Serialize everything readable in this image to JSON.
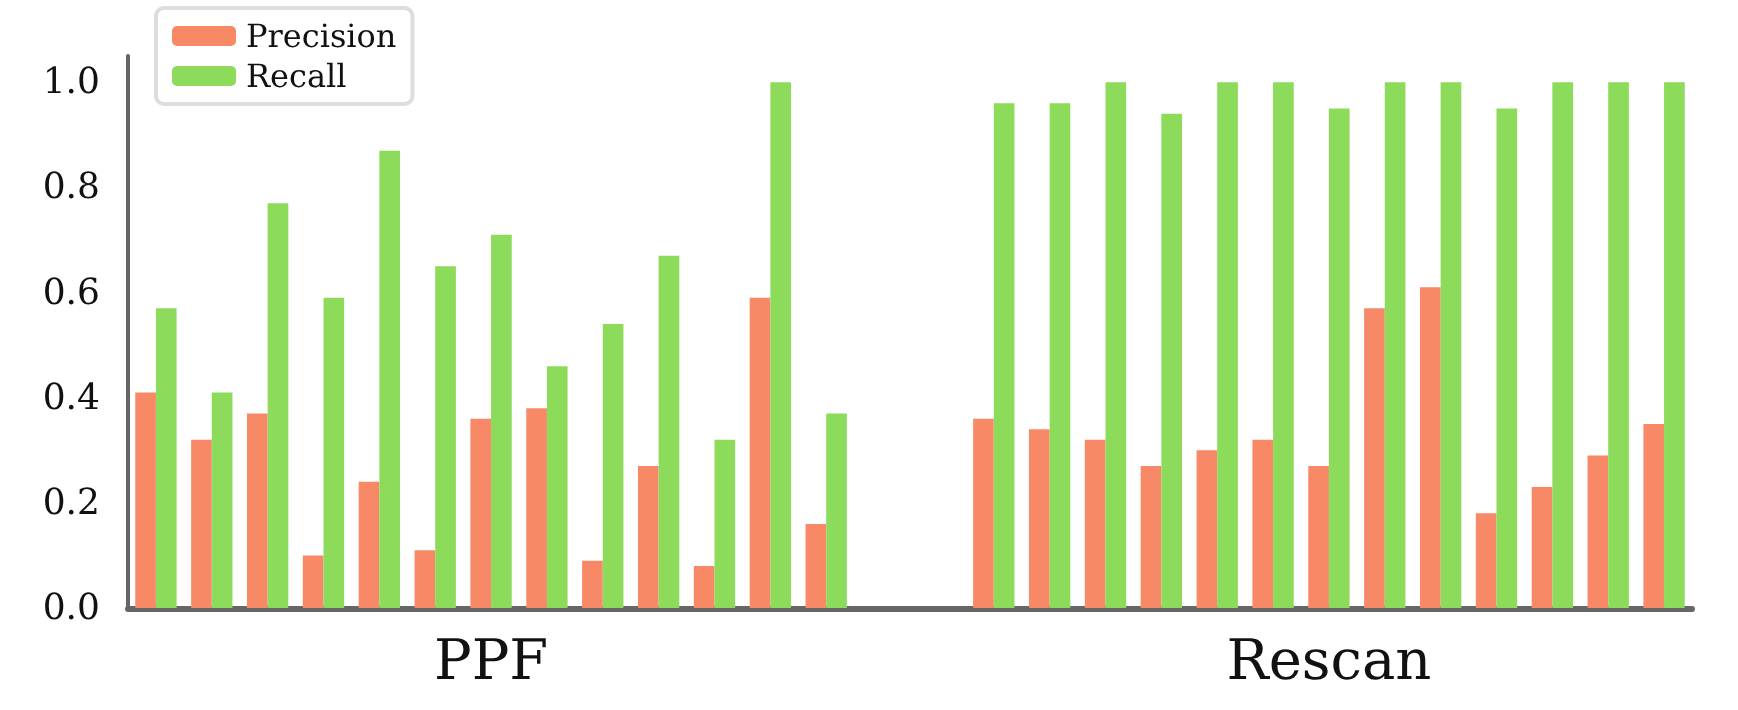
{
  "chart_data": {
    "type": "bar",
    "categories": [
      null,
      null,
      null,
      null,
      null,
      null,
      "PPF",
      null,
      null,
      null,
      null,
      null,
      null,
      null,
      null,
      null,
      null,
      null,
      null,
      null,
      null,
      "Rescan",
      null,
      null,
      null,
      null,
      null,
      null
    ],
    "series": [
      {
        "name": "Precision",
        "color": "#f88967",
        "values": [
          0.41,
          0.32,
          0.37,
          0.1,
          0.24,
          0.11,
          0.36,
          0.38,
          0.09,
          0.27,
          0.08,
          0.59,
          0.16,
          null,
          null,
          0.36,
          0.34,
          0.32,
          0.27,
          0.3,
          0.32,
          0.27,
          0.57,
          0.61,
          0.18,
          0.23,
          0.29,
          0.35
        ]
      },
      {
        "name": "Recall",
        "color": "#8cdb5a",
        "values": [
          0.57,
          0.41,
          0.77,
          0.59,
          0.87,
          0.65,
          0.71,
          0.46,
          0.54,
          0.67,
          0.32,
          1.0,
          0.37,
          null,
          null,
          0.96,
          0.96,
          1.0,
          0.94,
          1.0,
          1.0,
          0.95,
          1.0,
          1.0,
          0.95,
          1.0,
          1.0,
          1.0
        ]
      }
    ],
    "ylim": [
      0,
      1.05
    ],
    "yticks": [
      {
        "value": 0,
        "label": "0.0"
      },
      {
        "value": 0.2,
        "label": "0.2"
      },
      {
        "value": 0.4,
        "label": "0.4"
      },
      {
        "value": 0.6,
        "label": "0.6"
      },
      {
        "value": 0.8,
        "label": "0.8"
      },
      {
        "value": 1.0,
        "label": "1.0"
      }
    ],
    "grid": false,
    "legend": "top left"
  }
}
